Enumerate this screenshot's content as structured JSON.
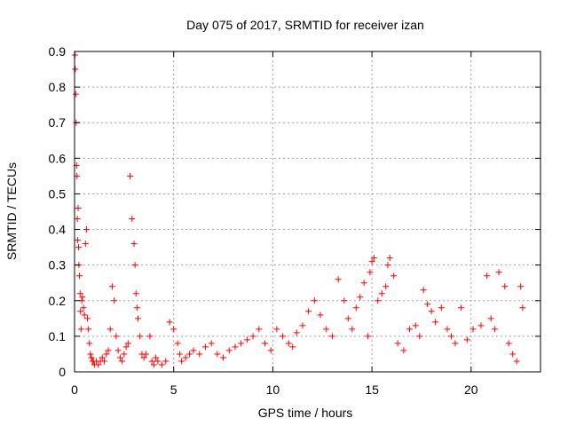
{
  "chart_data": {
    "type": "scatter",
    "title": "Day 075 of 2017, SRMTID for receiver izan",
    "xlabel": "GPS time / hours",
    "ylabel": "SRMTID / TECUs",
    "xlim": [
      0,
      23.5
    ],
    "ylim": [
      0,
      0.9
    ],
    "xticks": [
      0,
      5,
      10,
      15,
      20
    ],
    "yticks": [
      0,
      0.1,
      0.2,
      0.3,
      0.4,
      0.5,
      0.6,
      0.7,
      0.8,
      0.9
    ],
    "grid": true,
    "marker": "plus",
    "marker_color": "#ff0000",
    "series": [
      {
        "name": "SRMTID",
        "x": [
          0.02,
          0.04,
          0.06,
          0.08,
          0.1,
          0.12,
          0.14,
          0.16,
          0.18,
          0.2,
          0.22,
          0.25,
          0.28,
          0.3,
          0.33,
          0.36,
          0.4,
          0.45,
          0.5,
          0.55,
          0.6,
          0.65,
          0.7,
          0.75,
          0.8,
          0.85,
          0.9,
          0.95,
          1.0,
          1.1,
          1.2,
          1.3,
          1.4,
          1.5,
          1.6,
          1.7,
          1.8,
          1.9,
          2.0,
          2.1,
          2.2,
          2.3,
          2.4,
          2.5,
          2.6,
          2.7,
          2.8,
          2.9,
          3.0,
          3.05,
          3.1,
          3.15,
          3.2,
          3.3,
          3.4,
          3.5,
          3.6,
          3.8,
          3.9,
          4.0,
          4.1,
          4.2,
          4.4,
          4.6,
          4.8,
          5.0,
          5.2,
          5.3,
          5.4,
          5.6,
          5.8,
          6.0,
          6.3,
          6.6,
          6.9,
          7.2,
          7.5,
          7.8,
          8.1,
          8.4,
          8.7,
          9.0,
          9.3,
          9.6,
          9.9,
          10.2,
          10.5,
          10.8,
          11.0,
          11.2,
          11.5,
          11.8,
          12.1,
          12.4,
          12.7,
          13.0,
          13.3,
          13.6,
          13.8,
          14.0,
          14.2,
          14.4,
          14.6,
          14.8,
          14.9,
          15.0,
          15.1,
          15.3,
          15.5,
          15.7,
          15.8,
          15.9,
          16.1,
          16.3,
          16.6,
          16.9,
          17.2,
          17.4,
          17.6,
          17.8,
          18.0,
          18.2,
          18.5,
          18.8,
          19.0,
          19.2,
          19.5,
          19.8,
          20.1,
          20.5,
          20.8,
          21.0,
          21.2,
          21.4,
          21.7,
          21.9,
          22.1,
          22.3,
          22.5,
          22.6
        ],
        "y": [
          0.89,
          0.85,
          0.78,
          0.7,
          0.58,
          0.55,
          0.43,
          0.37,
          0.46,
          0.35,
          0.3,
          0.27,
          0.22,
          0.17,
          0.12,
          0.2,
          0.21,
          0.18,
          0.16,
          0.36,
          0.4,
          0.15,
          0.12,
          0.08,
          0.05,
          0.04,
          0.03,
          0.03,
          0.02,
          0.03,
          0.02,
          0.03,
          0.04,
          0.03,
          0.05,
          0.06,
          0.12,
          0.24,
          0.2,
          0.1,
          0.06,
          0.04,
          0.03,
          0.05,
          0.07,
          0.08,
          0.55,
          0.43,
          0.36,
          0.3,
          0.22,
          0.18,
          0.15,
          0.1,
          0.05,
          0.04,
          0.05,
          0.1,
          0.03,
          0.02,
          0.04,
          0.03,
          0.02,
          0.03,
          0.14,
          0.12,
          0.08,
          0.05,
          0.03,
          0.04,
          0.05,
          0.06,
          0.05,
          0.07,
          0.08,
          0.05,
          0.04,
          0.06,
          0.07,
          0.08,
          0.09,
          0.1,
          0.12,
          0.08,
          0.06,
          0.12,
          0.1,
          0.08,
          0.07,
          0.11,
          0.13,
          0.17,
          0.2,
          0.16,
          0.12,
          0.1,
          0.26,
          0.2,
          0.15,
          0.12,
          0.18,
          0.21,
          0.25,
          0.1,
          0.28,
          0.31,
          0.32,
          0.2,
          0.22,
          0.24,
          0.3,
          0.32,
          0.27,
          0.08,
          0.06,
          0.12,
          0.13,
          0.1,
          0.23,
          0.19,
          0.17,
          0.14,
          0.18,
          0.12,
          0.1,
          0.08,
          0.18,
          0.09,
          0.12,
          0.13,
          0.27,
          0.15,
          0.12,
          0.28,
          0.24,
          0.08,
          0.05,
          0.03,
          0.24,
          0.18
        ]
      }
    ]
  }
}
